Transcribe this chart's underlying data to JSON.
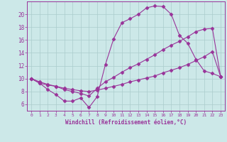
{
  "background_color": "#cce8e8",
  "grid_color": "#aacccc",
  "line_color": "#993399",
  "xlabel": "Windchill (Refroidissement éolien,°C)",
  "xlim": [
    -0.5,
    23.5
  ],
  "ylim": [
    5.0,
    22.0
  ],
  "yticks": [
    6,
    8,
    10,
    12,
    14,
    16,
    18,
    20
  ],
  "xticks": [
    0,
    1,
    2,
    3,
    4,
    5,
    6,
    7,
    8,
    9,
    10,
    11,
    12,
    13,
    14,
    15,
    16,
    17,
    18,
    19,
    20,
    21,
    22,
    23
  ],
  "curve1_x": [
    0,
    1,
    2,
    3,
    4,
    5,
    6,
    7,
    8,
    9,
    10,
    11,
    12,
    13,
    14,
    15,
    16,
    17,
    18,
    19,
    20,
    21,
    22,
    23
  ],
  "curve1_y": [
    10.0,
    9.3,
    8.3,
    7.5,
    6.5,
    6.5,
    7.0,
    5.5,
    7.2,
    12.2,
    16.2,
    18.7,
    19.3,
    20.0,
    21.0,
    21.3,
    21.2,
    20.0,
    16.7,
    15.5,
    13.0,
    11.2,
    10.8,
    10.3
  ],
  "curve2_x": [
    0,
    1,
    2,
    3,
    4,
    5,
    6,
    7,
    8,
    9,
    10,
    11,
    12,
    13,
    14,
    15,
    16,
    17,
    18,
    19,
    20,
    21,
    22,
    23
  ],
  "curve2_y": [
    10.0,
    9.5,
    9.1,
    8.8,
    8.5,
    8.3,
    8.1,
    8.0,
    8.2,
    8.5,
    8.8,
    9.1,
    9.5,
    9.8,
    10.1,
    10.4,
    10.9,
    11.3,
    11.7,
    12.2,
    12.8,
    13.4,
    14.2,
    10.3
  ],
  "curve3_x": [
    0,
    1,
    2,
    3,
    4,
    5,
    6,
    7,
    8,
    9,
    10,
    11,
    12,
    13,
    14,
    15,
    16,
    17,
    18,
    19,
    20,
    21,
    22,
    23
  ],
  "curve3_y": [
    10.0,
    9.3,
    9.0,
    8.8,
    8.3,
    8.0,
    7.7,
    7.3,
    8.5,
    9.5,
    10.2,
    11.0,
    11.7,
    12.3,
    13.0,
    13.7,
    14.5,
    15.2,
    15.8,
    16.5,
    17.3,
    17.7,
    17.8,
    10.3
  ],
  "marker": "D",
  "markersize": 2.5,
  "linewidth": 0.8
}
